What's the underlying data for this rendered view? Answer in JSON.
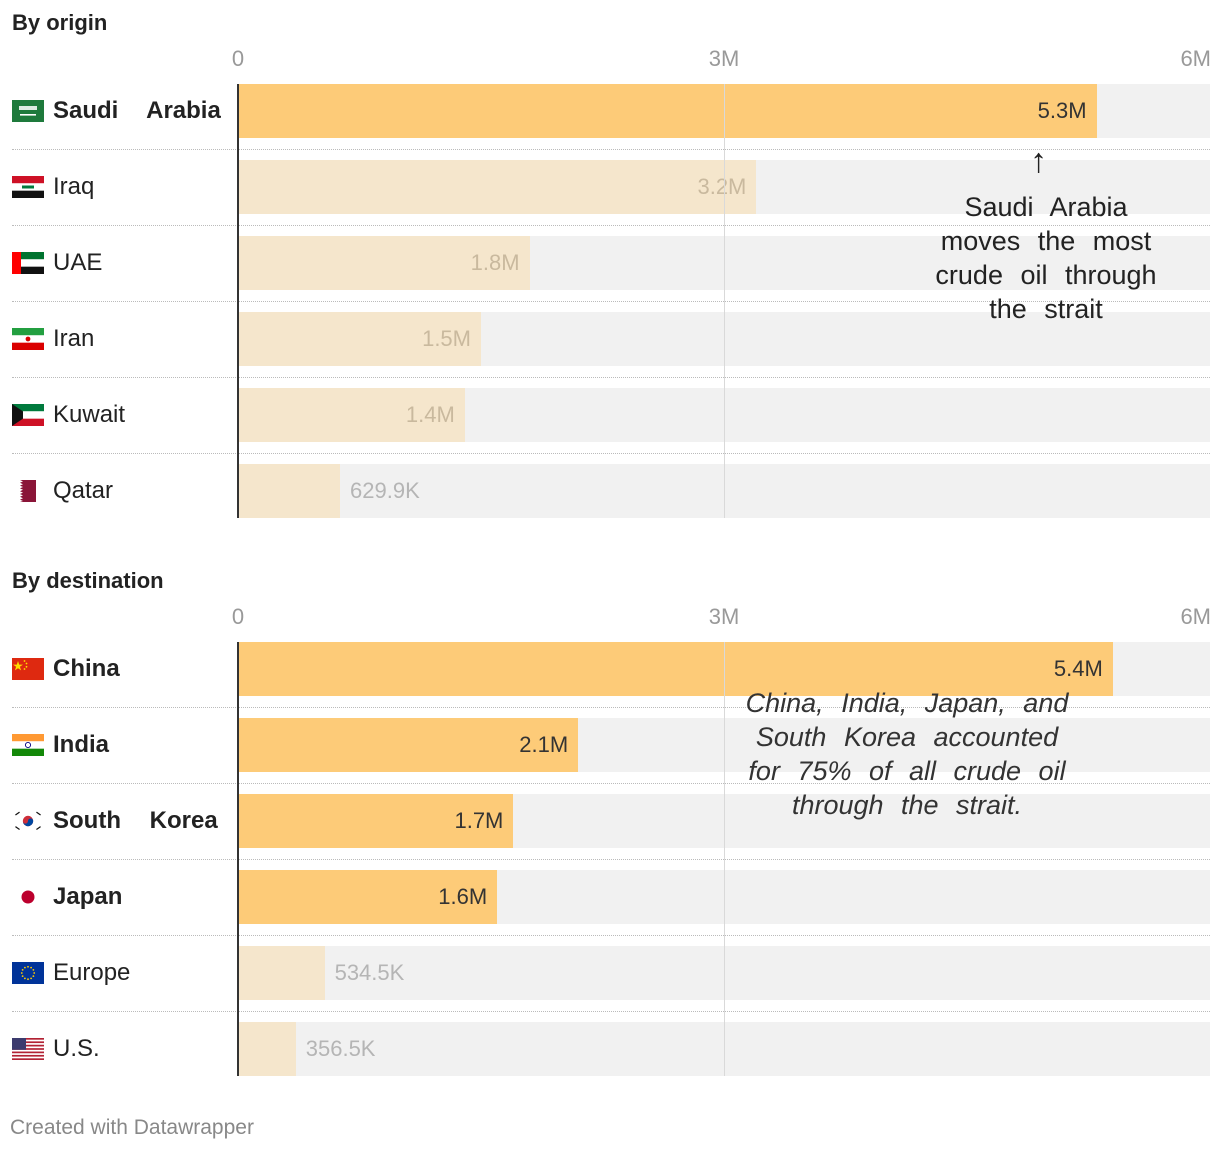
{
  "chart_data": [
    {
      "type": "bar",
      "orientation": "horizontal",
      "title": "By origin",
      "xlim": [
        0,
        6000000
      ],
      "ticks": [
        "0",
        "3M",
        "6M"
      ],
      "categories": [
        "Saudi Arabia",
        "Iraq",
        "UAE",
        "Iran",
        "Kuwait",
        "Qatar"
      ],
      "values": [
        5300000,
        3200000,
        1800000,
        1500000,
        1400000,
        629900
      ],
      "value_labels": [
        "5.3M",
        "3.2M",
        "1.8M",
        "1.5M",
        "1.4M",
        "629.9K"
      ],
      "highlighted": [
        true,
        false,
        false,
        false,
        false,
        false
      ],
      "annotation": "Saudi Arabia moves the most crude oil through the strait"
    },
    {
      "type": "bar",
      "orientation": "horizontal",
      "title": "By destination",
      "xlim": [
        0,
        6000000
      ],
      "ticks": [
        "0",
        "3M",
        "6M"
      ],
      "categories": [
        "China",
        "India",
        "South Korea",
        "Japan",
        "Europe",
        "U.S."
      ],
      "values": [
        5400000,
        2100000,
        1700000,
        1600000,
        534500,
        356500
      ],
      "value_labels": [
        "5.4M",
        "2.1M",
        "1.7M",
        "1.6M",
        "534.5K",
        "356.5K"
      ],
      "highlighted": [
        true,
        true,
        true,
        true,
        false,
        false
      ],
      "annotation": "China, India, Japan, and South Korea accounted for 75% of all crude oil through the strait."
    }
  ],
  "flags": {
    "origin": [
      "saudi-arabia-flag-icon",
      "iraq-flag-icon",
      "uae-flag-icon",
      "iran-flag-icon",
      "kuwait-flag-icon",
      "qatar-flag-icon"
    ],
    "destination": [
      "china-flag-icon",
      "india-flag-icon",
      "south-korea-flag-icon",
      "japan-flag-icon",
      "europe-flag-icon",
      "us-flag-icon"
    ]
  },
  "colors": {
    "highlight_bar": "#fdcb78",
    "muted_bar": "#f5e6cc",
    "track": "#f1f1f1"
  },
  "footer": "Created with Datawrapper"
}
